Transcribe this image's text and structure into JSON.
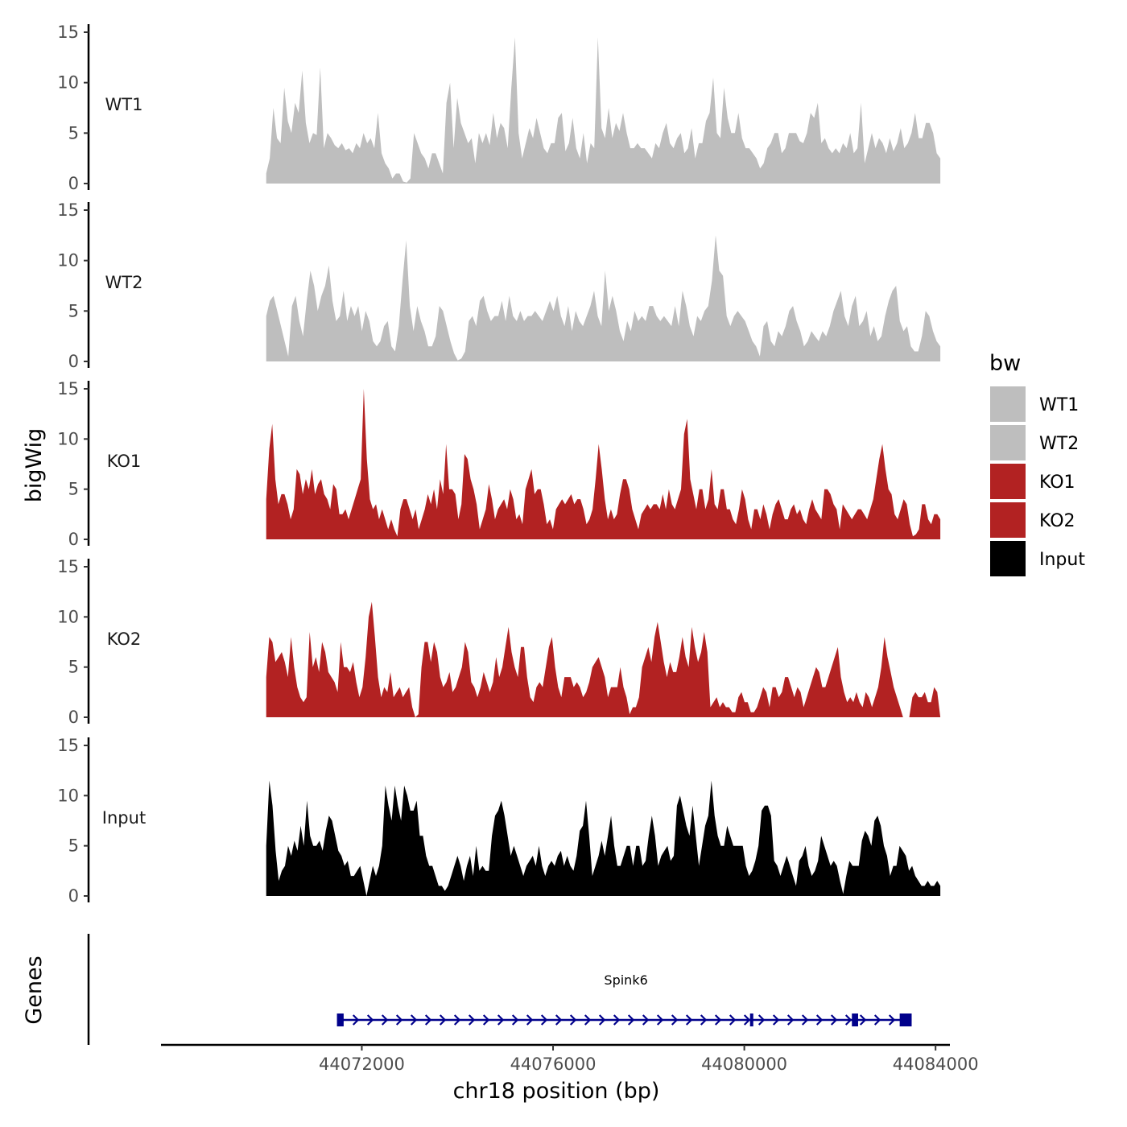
{
  "chart_data": {
    "type": "area",
    "ylabel": "bigWig",
    "xlabel": "chr18 position (bp)",
    "xlim": [
      44067800,
      44084300
    ],
    "ylim": [
      0,
      15
    ],
    "yticks": [
      0,
      5,
      10,
      15
    ],
    "ytick_labels": [
      "0",
      "5",
      "10",
      "15"
    ],
    "xticks": [
      44072000,
      44076000,
      44080000,
      44084000
    ],
    "xtick_labels": [
      "44072000",
      "44076000",
      "44080000",
      "44084000"
    ],
    "data_range": [
      44070000,
      44084100
    ],
    "legend": {
      "title": "bw",
      "placement": "right",
      "entries": [
        {
          "label": "WT1",
          "color": "#bebebe"
        },
        {
          "label": "WT2",
          "color": "#bebebe"
        },
        {
          "label": "KO1",
          "color": "#b22222"
        },
        {
          "label": "KO2",
          "color": "#b22222"
        },
        {
          "label": "Input",
          "color": "#000000"
        }
      ]
    },
    "series": [
      {
        "name": "WT1",
        "color": "#bebebe",
        "values": [
          1,
          2.5,
          7.5,
          4.5,
          4,
          9.5,
          6.2,
          5,
          8,
          7,
          11.2,
          6,
          4,
          5,
          4.8,
          11.5,
          3.5,
          5,
          4.5,
          3.8,
          3.5,
          4,
          3.3,
          3.5,
          3,
          4,
          3.5,
          5,
          4,
          4.5,
          3.5,
          7,
          3,
          2,
          1.5,
          0.5,
          1,
          1,
          0.2,
          0.1,
          0.5,
          5,
          4,
          3,
          2.5,
          1.5,
          3,
          3,
          2,
          1,
          8,
          10,
          3.5,
          8.5,
          6,
          5,
          4,
          4.5,
          2,
          5,
          4,
          5,
          3.8,
          7,
          4.5,
          6,
          5.5,
          3.5,
          9.5,
          14.5,
          5,
          2.5,
          4,
          5.5,
          4.5,
          6.5,
          5,
          3.5,
          3,
          4,
          4,
          6.5,
          7,
          3.2,
          4,
          6.5,
          3.5,
          2.5,
          5,
          2,
          4,
          3.5,
          14.5,
          5.5,
          4.5,
          7.5,
          4.5,
          6,
          5.2,
          7,
          5,
          3.5,
          3.5,
          4,
          3.5,
          3.5,
          3,
          2.5,
          4,
          3.5,
          5,
          6,
          4,
          3.5,
          4.5,
          5,
          3,
          3.5,
          5.5,
          2.5,
          4,
          4,
          6.2,
          7,
          10.5,
          5,
          4.5,
          9.5,
          6.5,
          5,
          5,
          7,
          4.5,
          3.5,
          3.5,
          3,
          2.5,
          1.5,
          2,
          3.5,
          4,
          5,
          5,
          3,
          3.5,
          5,
          5,
          5,
          4.2,
          4,
          5,
          7,
          6.5,
          8,
          4,
          4.5,
          3.5,
          3,
          3.5,
          3,
          4,
          3.5,
          5,
          3,
          3.5,
          8,
          2,
          3.5,
          5,
          3.5,
          4.5,
          4,
          3,
          4.5,
          3.2,
          4,
          5.5,
          3.5,
          4,
          5,
          7,
          4.5,
          4.5,
          6,
          6,
          5,
          3,
          2.5
        ],
        "label_text": "WT1"
      },
      {
        "name": "WT2",
        "color": "#bebebe",
        "values": [
          4.5,
          6,
          6.5,
          5,
          3.5,
          2,
          0.5,
          5.5,
          6.5,
          4,
          2.5,
          6,
          9,
          7.5,
          5,
          6.5,
          7.5,
          9.5,
          6,
          4,
          4.5,
          7,
          4,
          5.5,
          4.5,
          5.5,
          3,
          5,
          4,
          2,
          1.5,
          2,
          3.5,
          4,
          1.5,
          1,
          3.5,
          8,
          12,
          5.5,
          3,
          5.5,
          4,
          3,
          1.5,
          1.5,
          2.5,
          5.5,
          5,
          3.5,
          2,
          0.8,
          0.1,
          0.3,
          1,
          4,
          4.5,
          3.5,
          6,
          6.5,
          5,
          4,
          4.5,
          4.5,
          6,
          4,
          6.5,
          4.5,
          4,
          5,
          4,
          4.5,
          4.5,
          5,
          4.5,
          4,
          5,
          6,
          5,
          6.5,
          4.5,
          3.5,
          5.5,
          3,
          5,
          4,
          3.5,
          4.5,
          5.5,
          7,
          4.5,
          3.5,
          9,
          5,
          6.5,
          5,
          3,
          2,
          4,
          3,
          5,
          4,
          4.5,
          4,
          5.5,
          5.5,
          4.5,
          4,
          4.5,
          4,
          3.5,
          5.5,
          3.5,
          7,
          5.5,
          3.5,
          2.5,
          4.5,
          4,
          5,
          5.5,
          8,
          12.5,
          9,
          8.5,
          4.5,
          3.5,
          4.5,
          5,
          4.5,
          4,
          3,
          2,
          1.5,
          0.5,
          3.5,
          4,
          2,
          1.5,
          3,
          2.5,
          3.5,
          5,
          5.5,
          4,
          3,
          1.5,
          2,
          3,
          2.5,
          2,
          3,
          2.5,
          3.5,
          5,
          6,
          7,
          4.5,
          3.5,
          5.5,
          6.5,
          3.5,
          4,
          5,
          2.5,
          3.5,
          2,
          2.5,
          4.5,
          6,
          7,
          7.5,
          4,
          3,
          3.5,
          1.5,
          1,
          1,
          2.5,
          5,
          4.5,
          3,
          2,
          1.5
        ],
        "label_text": "WT2"
      },
      {
        "name": "KO1",
        "color": "#b22222",
        "values": [
          4,
          9,
          11.5,
          6,
          3.5,
          4.5,
          4.5,
          3.5,
          2,
          3,
          7,
          6.5,
          4.5,
          6,
          5,
          7,
          4.5,
          5.5,
          6,
          4.5,
          4,
          3,
          5.5,
          5,
          2.5,
          2.5,
          3,
          2,
          3,
          4,
          5,
          6,
          15,
          8,
          4,
          3,
          3.5,
          2,
          3,
          2,
          1,
          2,
          1,
          0.3,
          3,
          4,
          4,
          3,
          2,
          3,
          1,
          2,
          3,
          4.5,
          3.5,
          5,
          3,
          6,
          4.5,
          9.5,
          5,
          5,
          4.5,
          2,
          3.5,
          8.5,
          8,
          6,
          5,
          3.5,
          1,
          2,
          3,
          5.5,
          4,
          2,
          3,
          3.5,
          4,
          3,
          5,
          4,
          2,
          2.5,
          1.5,
          5,
          6,
          7,
          4.5,
          5,
          5,
          3.5,
          1.5,
          2,
          1,
          3,
          3.5,
          4,
          3.5,
          4,
          4.5,
          3.5,
          4,
          4,
          3,
          1.5,
          2,
          3,
          6,
          9.5,
          7,
          4,
          2,
          3,
          2,
          2.5,
          4.5,
          6,
          6,
          5,
          3,
          2,
          1,
          2.5,
          3,
          3.5,
          3,
          3.5,
          3.5,
          3,
          4.5,
          3,
          5,
          3.5,
          3,
          4,
          5,
          10.5,
          12,
          6,
          4.5,
          3,
          5,
          5,
          3,
          4,
          7,
          3.5,
          3,
          5,
          5,
          3,
          3,
          2,
          1.5,
          3,
          5,
          4,
          2,
          1,
          3,
          3,
          2,
          3.5,
          2.5,
          1,
          2.5,
          3.5,
          4,
          3,
          2,
          2,
          3,
          3.5,
          2.5,
          3,
          2,
          1.5,
          3,
          4,
          3,
          2.5,
          2,
          5,
          5,
          4.5,
          3.5,
          3,
          1,
          3.5,
          3,
          2.5,
          2,
          2.5,
          3,
          3,
          2.5,
          2,
          3,
          4,
          6,
          8,
          9.5,
          7,
          5,
          4.5,
          2.5,
          2,
          3,
          4,
          3.5,
          1.5,
          0.3,
          0.5,
          1,
          3.5,
          3.5,
          2,
          1.5,
          2.5,
          2.5,
          2
        ],
        "label_text": "KO1"
      },
      {
        "name": "KO2",
        "color": "#b22222",
        "values": [
          4,
          8,
          7.5,
          5.5,
          6,
          6.5,
          5.5,
          4,
          8,
          5,
          3,
          2,
          1.5,
          2,
          8.5,
          5,
          6,
          4.5,
          7.5,
          6.5,
          4.5,
          4,
          3.5,
          2.5,
          7.5,
          5,
          5,
          4.5,
          5.5,
          3.5,
          2,
          3,
          6,
          10,
          11.5,
          8,
          4,
          2,
          3,
          2.5,
          4.5,
          2,
          2.5,
          3,
          2,
          2.5,
          3,
          1,
          0,
          0.3,
          5,
          7.5,
          7.5,
          5.5,
          7.5,
          6.5,
          4,
          3,
          3.5,
          4.5,
          2.5,
          3,
          4,
          5,
          7.5,
          6.5,
          3.5,
          3,
          2,
          3,
          4.5,
          3.5,
          2.5,
          3.5,
          6,
          4,
          5,
          7,
          9,
          6.5,
          5,
          4,
          7,
          7,
          4,
          2,
          1.5,
          3,
          3.5,
          3,
          5,
          7,
          8,
          5,
          3,
          2,
          4,
          4,
          4,
          3,
          3.5,
          3,
          2,
          2.5,
          3.5,
          5,
          5.5,
          6,
          5,
          4,
          2,
          3,
          3,
          3,
          5,
          3,
          2,
          0.3,
          1,
          1,
          2,
          5,
          6,
          7,
          5.5,
          8,
          9.5,
          7.5,
          5.5,
          4,
          5.5,
          4.5,
          4.5,
          6,
          8,
          6,
          5,
          9,
          7,
          5.5,
          6.5,
          8.5,
          6.5,
          1,
          1.5,
          2,
          1,
          1.5,
          1,
          1,
          0.5,
          0.5,
          2,
          2.5,
          1.5,
          1.5,
          0.5,
          0.5,
          1,
          2,
          3,
          2.5,
          1,
          3,
          3,
          2,
          2.5,
          4,
          4,
          3,
          2,
          3,
          2.5,
          1,
          2,
          3,
          4,
          5,
          4.5,
          3,
          3,
          4,
          5,
          6,
          7,
          4,
          2.5,
          1.5,
          2,
          1.5,
          2.5,
          1.5,
          1,
          2.5,
          2,
          1,
          2,
          3,
          5,
          8,
          6,
          4.5,
          3,
          2,
          1,
          0,
          0,
          0,
          2,
          2.5,
          2,
          2,
          2.5,
          1.5,
          1.5,
          3,
          2.5,
          0
        ],
        "label_text": "KO2"
      },
      {
        "name": "Input",
        "color": "#000000",
        "values": [
          5,
          11.5,
          9,
          4.5,
          1.5,
          2.5,
          3,
          5,
          4,
          5.5,
          4.5,
          7,
          5,
          9.5,
          6,
          5,
          5,
          5.5,
          4.5,
          6.5,
          8,
          7.5,
          6,
          4.5,
          4,
          3,
          3.5,
          2,
          2,
          2.5,
          3,
          1.5,
          0,
          1.5,
          3,
          2,
          3,
          5,
          11,
          9,
          7.5,
          11,
          9,
          7.5,
          11,
          10,
          8.5,
          8.5,
          9.5,
          6,
          6,
          4,
          3,
          3,
          2,
          1,
          1,
          0.5,
          1,
          2,
          3,
          4,
          3,
          1.5,
          3,
          4,
          2,
          5,
          2.5,
          3,
          2.5,
          2.5,
          6,
          8,
          8.5,
          9.5,
          8,
          6,
          4,
          5,
          4,
          3,
          2,
          3,
          3.5,
          4,
          3,
          5,
          3,
          2,
          3,
          3.5,
          3,
          4,
          4.5,
          3,
          4,
          3,
          2.5,
          4,
          6.5,
          7,
          9.5,
          6,
          2,
          3,
          4,
          5.5,
          4,
          6,
          8,
          5,
          3,
          3,
          4,
          5,
          5,
          3,
          5,
          5,
          3,
          3.5,
          6,
          8,
          6,
          3,
          4,
          4.5,
          5,
          3.5,
          4,
          9,
          10,
          8.5,
          7,
          6,
          9,
          6,
          3,
          5,
          7,
          8,
          11.5,
          8,
          6,
          5,
          5,
          7,
          6,
          5,
          5,
          5,
          5,
          3,
          2,
          2.5,
          3.5,
          5,
          8.5,
          9,
          9,
          8,
          3.5,
          3,
          2,
          3,
          4,
          3,
          2,
          1,
          3.5,
          4,
          5,
          3,
          2,
          2.5,
          3.5,
          6,
          5,
          4,
          3,
          3.5,
          3,
          1.5,
          0.2,
          2,
          3.5,
          3,
          3,
          3,
          5.5,
          6.5,
          6,
          5,
          7.5,
          8,
          7,
          5,
          4,
          2,
          3,
          3,
          5,
          4.5,
          4,
          2.5,
          3,
          2,
          1.5,
          1,
          1,
          1.5,
          1,
          1,
          1.5,
          1
        ],
        "label_text": "Input"
      }
    ]
  },
  "genes_track": {
    "label": "Genes",
    "gene_name": "Spink6",
    "gene_color": "#00008b",
    "start": 44071550,
    "end": 44083500,
    "exons": [
      [
        44071480,
        44071620
      ],
      [
        44080120,
        44080160
      ],
      [
        44082250,
        44082380
      ],
      [
        44083250,
        44083500
      ]
    ],
    "strand_arrows": "right"
  }
}
